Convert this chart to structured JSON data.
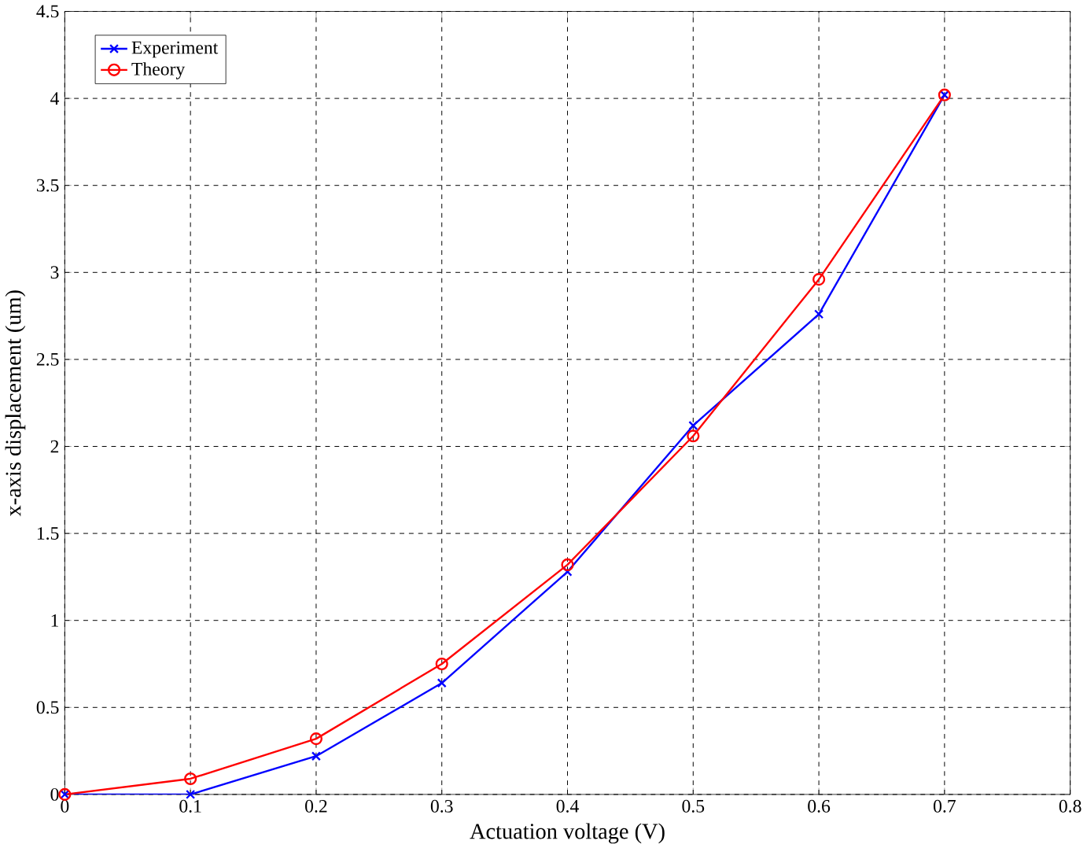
{
  "chart_data": {
    "type": "line",
    "xlabel": "Actuation voltage (V)",
    "ylabel": "x-axis displacement (um)",
    "x": [
      0,
      0.1,
      0.2,
      0.3,
      0.4,
      0.5,
      0.6,
      0.7
    ],
    "series": [
      {
        "name": "Experiment",
        "color": "#0000ff",
        "marker": "cross",
        "values": [
          0,
          0,
          0.22,
          0.64,
          1.28,
          2.12,
          2.76,
          4.02
        ]
      },
      {
        "name": "Theory",
        "color": "#ff0000",
        "marker": "circle",
        "values": [
          0,
          0.09,
          0.32,
          0.75,
          1.32,
          2.06,
          2.96,
          4.02
        ]
      }
    ],
    "xlim": [
      0,
      0.8
    ],
    "xticks": [
      0,
      0.1,
      0.2,
      0.3,
      0.4,
      0.5,
      0.6,
      0.7,
      0.8
    ],
    "ylim": [
      0,
      4.5
    ],
    "yticks": [
      0,
      0.5,
      1,
      1.5,
      2,
      2.5,
      3,
      3.5,
      4,
      4.5
    ],
    "grid": true,
    "legend": "top left",
    "line_style": "solid"
  }
}
